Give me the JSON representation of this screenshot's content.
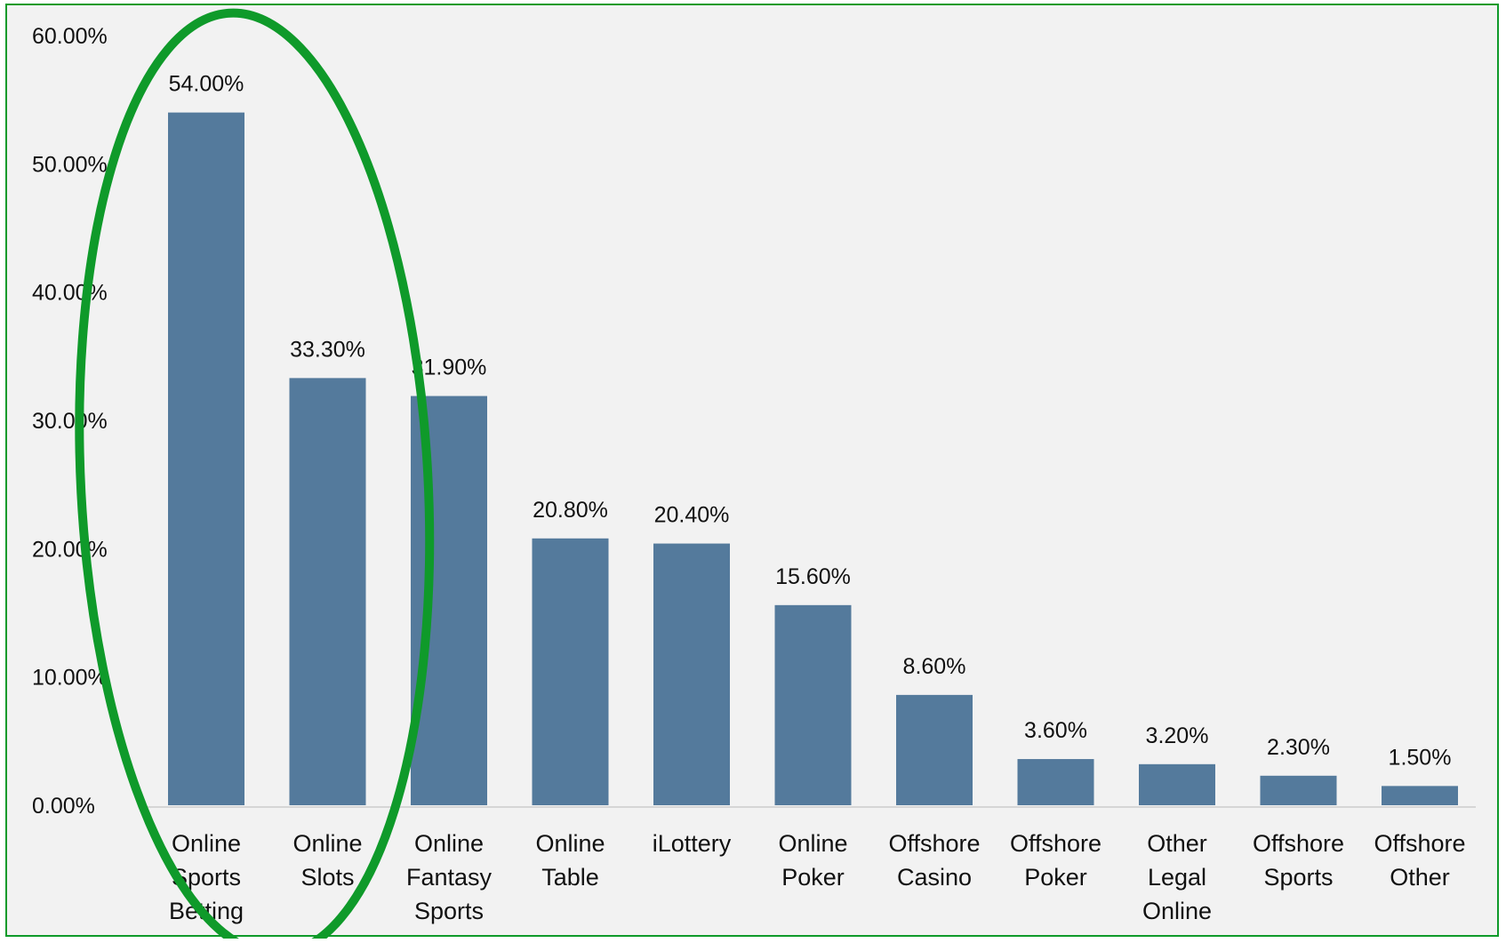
{
  "chart_data": {
    "type": "bar",
    "categories": [
      [
        "Online",
        "Sports",
        "Betting"
      ],
      [
        "Online",
        "Slots"
      ],
      [
        "Online",
        "Fantasy",
        "Sports"
      ],
      [
        "Online",
        "Table"
      ],
      [
        "iLottery"
      ],
      [
        "Online",
        "Poker"
      ],
      [
        "Offshore",
        "Casino"
      ],
      [
        "Offshore",
        "Poker"
      ],
      [
        "Other",
        "Legal",
        "Online"
      ],
      [
        "Offshore",
        "Sports"
      ],
      [
        "Offshore",
        "Other"
      ]
    ],
    "values": [
      54.0,
      33.3,
      31.9,
      20.8,
      20.4,
      15.6,
      8.6,
      3.6,
      3.2,
      2.3,
      1.5
    ],
    "data_labels": [
      "54.00%",
      "33.30%",
      "31.90%",
      "20.80%",
      "20.40%",
      "15.60%",
      "8.60%",
      "3.60%",
      "3.20%",
      "2.30%",
      "1.50%"
    ],
    "y_ticks": [
      0,
      10,
      20,
      30,
      40,
      50,
      60
    ],
    "y_tick_labels": [
      "0.00%",
      "10.00%",
      "20.00%",
      "30.00%",
      "40.00%",
      "50.00%",
      "60.00%"
    ],
    "ylim": [
      0,
      60
    ],
    "grid": false,
    "legend": "none",
    "bar_color": "#547a9c",
    "annotation": {
      "shape": "ellipse",
      "color": "#0f9a2a",
      "encloses_categories": [
        0,
        1
      ]
    }
  },
  "colors": {
    "frame": "#0f9a2a",
    "background": "#f2f2f2",
    "axis": "#d6d6d6"
  }
}
